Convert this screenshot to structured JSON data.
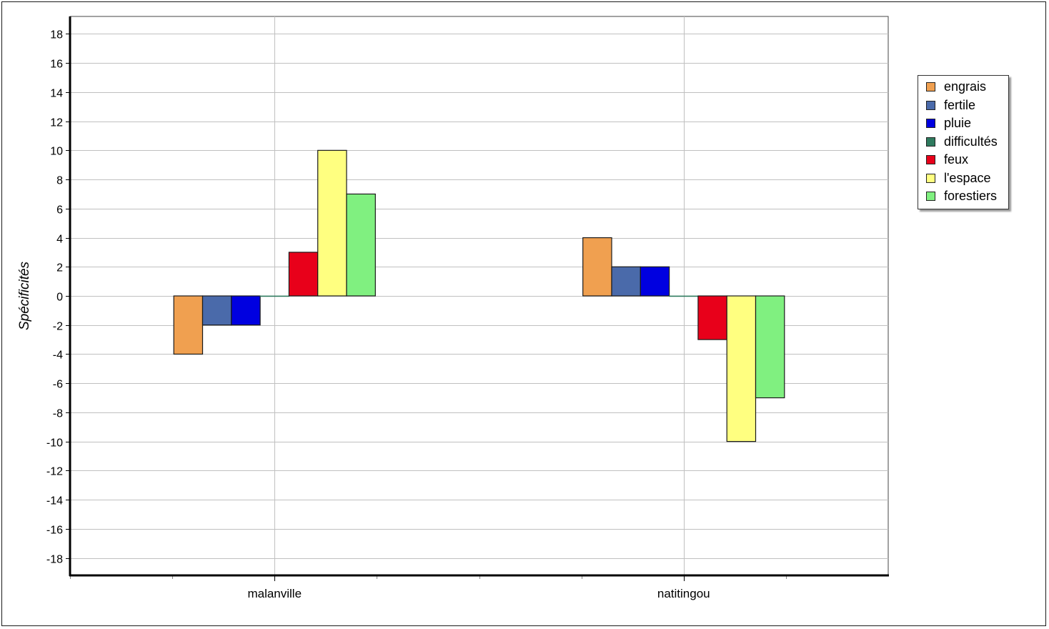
{
  "chart_data": {
    "type": "bar",
    "title": "",
    "xlabel": "",
    "ylabel": "Spécificités",
    "categories": [
      "malanville",
      "natitingou"
    ],
    "series": [
      {
        "name": "engrais",
        "color": "#f0a050",
        "values": [
          -4,
          4
        ]
      },
      {
        "name": "fertile",
        "color": "#4a6aaa",
        "values": [
          -2,
          2
        ]
      },
      {
        "name": "pluie",
        "color": "#0000e0",
        "values": [
          -2,
          2
        ]
      },
      {
        "name": "difficultés",
        "color": "#2e7a5e",
        "values": [
          0,
          0
        ]
      },
      {
        "name": "feux",
        "color": "#e8001a",
        "values": [
          3,
          -3
        ]
      },
      {
        "name": "l'espace",
        "color": "#ffff80",
        "values": [
          10,
          -10
        ]
      },
      {
        "name": "forestiers",
        "color": "#80f080",
        "values": [
          7,
          -7
        ]
      }
    ],
    "ylim": [
      -19.2,
      19.2
    ],
    "yticks": [
      18,
      16,
      14,
      12,
      10,
      8,
      6,
      4,
      2,
      0,
      -2,
      -4,
      -6,
      -8,
      -10,
      -12,
      -14,
      -16,
      -18
    ],
    "grid": true,
    "legend_position": "right"
  }
}
